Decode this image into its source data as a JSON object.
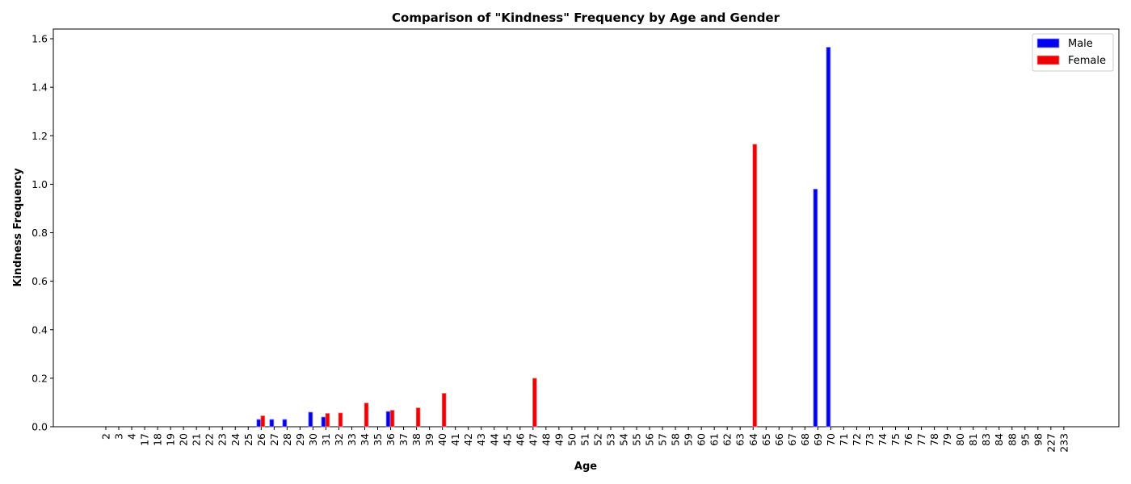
{
  "chart_data": {
    "type": "bar",
    "title": "Comparison of \"Kindness\" Frequency by Age and Gender",
    "xlabel": "Age",
    "ylabel": "Kindness Frequency",
    "ylim": [
      0,
      1.64
    ],
    "yticks": [
      "0.0",
      "0.2",
      "0.4",
      "0.6",
      "0.8",
      "1.0",
      "1.2",
      "1.4",
      "1.6"
    ],
    "categories": [
      "2",
      "3",
      "4",
      "17",
      "18",
      "19",
      "20",
      "21",
      "22",
      "23",
      "24",
      "25",
      "26",
      "27",
      "28",
      "29",
      "30",
      "31",
      "32",
      "33",
      "34",
      "35",
      "36",
      "37",
      "38",
      "39",
      "40",
      "41",
      "42",
      "43",
      "44",
      "45",
      "46",
      "47",
      "48",
      "49",
      "50",
      "51",
      "52",
      "53",
      "54",
      "55",
      "56",
      "57",
      "58",
      "59",
      "60",
      "61",
      "62",
      "63",
      "64",
      "65",
      "66",
      "67",
      "68",
      "69",
      "70",
      "71",
      "72",
      "73",
      "74",
      "75",
      "76",
      "77",
      "78",
      "79",
      "80",
      "81",
      "83",
      "84",
      "88",
      "95",
      "98",
      "227",
      "233"
    ],
    "series": [
      {
        "name": "Male",
        "color": "#0000ee",
        "values": [
          0,
          0,
          0,
          0,
          0,
          0,
          0,
          0,
          0,
          0,
          0,
          0,
          0.03,
          0.03,
          0.03,
          0,
          0.06,
          0.04,
          0,
          0,
          0,
          0,
          0.063,
          0,
          0,
          0,
          0,
          0,
          0,
          0,
          0,
          0,
          0,
          0,
          0,
          0,
          0,
          0,
          0,
          0,
          0,
          0,
          0,
          0,
          0,
          0,
          0,
          0,
          0,
          0,
          0,
          0,
          0,
          0,
          0,
          0.98,
          1.565,
          0,
          0,
          0,
          0,
          0,
          0,
          0,
          0,
          0,
          0,
          0,
          0,
          0,
          0,
          0,
          0,
          0,
          0
        ]
      },
      {
        "name": "Female",
        "color": "#ee0000",
        "values": [
          0,
          0,
          0,
          0,
          0,
          0,
          0,
          0,
          0,
          0,
          0,
          0,
          0.045,
          0,
          0,
          0,
          0,
          0.055,
          0.057,
          0,
          0.098,
          0,
          0.068,
          0,
          0.078,
          0,
          0.138,
          0,
          0,
          0,
          0,
          0,
          0,
          0.2,
          0,
          0,
          0,
          0,
          0,
          0,
          0,
          0,
          0,
          0,
          0,
          0,
          0,
          0,
          0,
          0,
          1.165,
          0,
          0,
          0,
          0,
          0,
          0,
          0,
          0,
          0,
          0,
          0,
          0,
          0,
          0,
          0,
          0,
          0,
          0,
          0,
          0,
          0,
          0,
          0,
          0
        ]
      }
    ],
    "legend_position": "top-right",
    "grid": false
  }
}
